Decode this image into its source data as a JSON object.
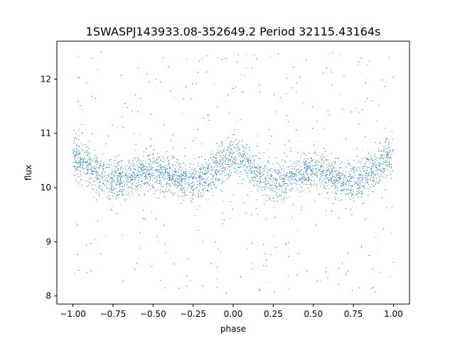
{
  "chart_data": {
    "type": "scatter",
    "title": "1SWASPJ143933.08-352649.2 Period 32115.43164s",
    "xlabel": "phase",
    "ylabel": "flux",
    "xlim": [
      -1.1,
      1.1
    ],
    "ylim": [
      7.85,
      12.7
    ],
    "x_ticks": [
      -1.0,
      -0.75,
      -0.5,
      -0.25,
      0.0,
      0.25,
      0.5,
      0.75,
      1.0
    ],
    "x_tick_labels": [
      "−1.00",
      "−0.75",
      "−0.50",
      "−0.25",
      "0.00",
      "0.25",
      "0.50",
      "0.75",
      "1.00"
    ],
    "y_ticks": [
      8,
      9,
      10,
      11,
      12
    ],
    "y_tick_labels": [
      "8",
      "9",
      "10",
      "11",
      "12"
    ],
    "grid": false,
    "marker_color": "#1f77b4",
    "x_range": [
      -1.0,
      1.0
    ],
    "flux_range": [
      8.05,
      12.5
    ],
    "phase_curve": {
      "phase": [
        -1.0,
        -0.75,
        -0.5,
        -0.25,
        0.0,
        0.25,
        0.5,
        0.75,
        1.0
      ],
      "flux": [
        10.55,
        10.12,
        10.3,
        10.12,
        10.55,
        10.12,
        10.3,
        10.12,
        10.55
      ]
    }
  }
}
